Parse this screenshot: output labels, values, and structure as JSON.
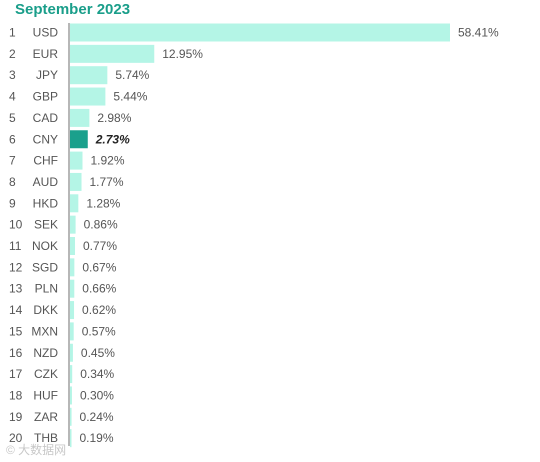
{
  "chart_data": {
    "type": "bar",
    "orientation": "horizontal",
    "title": "September 2023",
    "ranks": [
      "1",
      "2",
      "3",
      "4",
      "5",
      "6",
      "7",
      "8",
      "9",
      "10",
      "11",
      "12",
      "13",
      "14",
      "15",
      "16",
      "17",
      "18",
      "19",
      "20"
    ],
    "categories": [
      "USD",
      "EUR",
      "JPY",
      "GBP",
      "CAD",
      "CNY",
      "CHF",
      "AUD",
      "HKD",
      "SEK",
      "NOK",
      "SGD",
      "PLN",
      "DKK",
      "MXN",
      "NZD",
      "CZK",
      "HUF",
      "ZAR",
      "THB"
    ],
    "values": [
      58.41,
      12.95,
      5.74,
      5.44,
      2.98,
      2.73,
      1.92,
      1.77,
      1.28,
      0.86,
      0.77,
      0.67,
      0.66,
      0.62,
      0.57,
      0.45,
      0.34,
      0.3,
      0.24,
      0.19
    ],
    "value_labels": [
      "58.41%",
      "12.95%",
      "5.74%",
      "5.44%",
      "2.98%",
      "2.73%",
      "1.92%",
      "1.77%",
      "1.28%",
      "0.86%",
      "0.77%",
      "0.67%",
      "0.66%",
      "0.62%",
      "0.57%",
      "0.45%",
      "0.34%",
      "0.30%",
      "0.24%",
      "0.19%"
    ],
    "highlight_category": "CNY",
    "colors": {
      "bar": "#b4f5e6",
      "highlight": "#1aa08c",
      "title": "#1a9e8a",
      "text": "#555555",
      "axis": "#6f6f6f"
    }
  },
  "watermark": "© 大数据网"
}
